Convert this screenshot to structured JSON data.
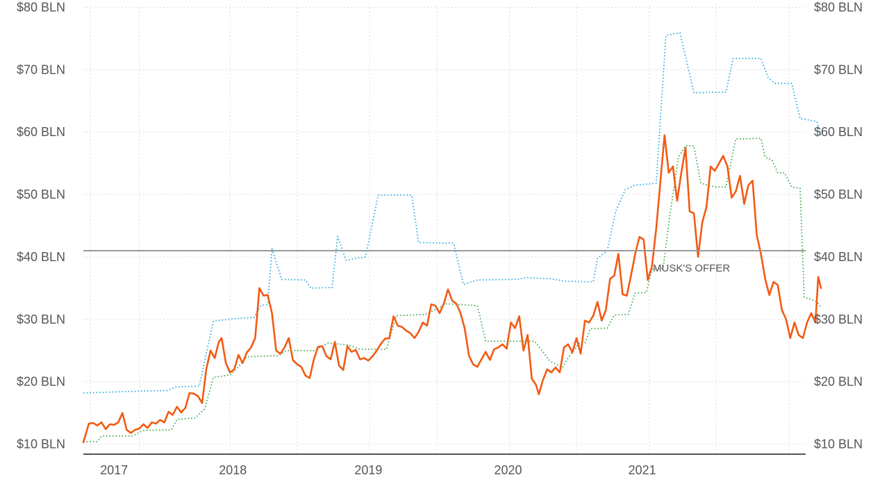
{
  "chart_data": {
    "type": "line",
    "title": "",
    "xlabel": "",
    "ylabel": "",
    "x_ticks": [
      "2017",
      "2018",
      "2019",
      "2020",
      "2021"
    ],
    "y_ticks_left": [
      "$10 BLN",
      "$20 BLN",
      "$30 BLN",
      "$40 BLN",
      "$50 BLN",
      "$60 BLN",
      "$70 BLN",
      "$80 BLN"
    ],
    "y_ticks_right": [
      "$10 BLN",
      "$20 BLN",
      "$30 BLN",
      "$40 BLN",
      "$50 BLN",
      "$60 BLN",
      "$70 BLN",
      "$80 BLN"
    ],
    "ylim": [
      8.4,
      80.5
    ],
    "xlim": [
      2016.45,
      2021.62
    ],
    "grid": true,
    "reference_line": {
      "value": 41.0,
      "label": "MUSK'S OFFER"
    },
    "series": [
      {
        "color": "#F25A12",
        "style": "solid",
        "points": [
          [
            2016.45,
            10.3
          ],
          [
            2016.49,
            13.3
          ],
          [
            2016.52,
            13.4
          ],
          [
            2016.55,
            13.0
          ],
          [
            2016.58,
            13.5
          ],
          [
            2016.61,
            12.4
          ],
          [
            2016.64,
            13.2
          ],
          [
            2016.67,
            13.1
          ],
          [
            2016.7,
            13.5
          ],
          [
            2016.73,
            15.0
          ],
          [
            2016.76,
            12.3
          ],
          [
            2016.79,
            11.8
          ],
          [
            2016.82,
            12.3
          ],
          [
            2016.85,
            12.5
          ],
          [
            2016.88,
            13.2
          ],
          [
            2016.91,
            12.6
          ],
          [
            2016.94,
            13.5
          ],
          [
            2016.97,
            13.3
          ],
          [
            2017.0,
            13.9
          ],
          [
            2017.03,
            13.5
          ],
          [
            2017.06,
            15.2
          ],
          [
            2017.09,
            14.7
          ],
          [
            2017.12,
            16.0
          ],
          [
            2017.15,
            15.1
          ],
          [
            2017.18,
            15.8
          ],
          [
            2017.21,
            18.2
          ],
          [
            2017.24,
            18.1
          ],
          [
            2017.27,
            17.7
          ],
          [
            2017.3,
            16.6
          ],
          [
            2017.33,
            22.0
          ],
          [
            2017.36,
            25.0
          ],
          [
            2017.39,
            23.8
          ],
          [
            2017.42,
            26.4
          ],
          [
            2017.44,
            27.0
          ],
          [
            2017.47,
            23.0
          ],
          [
            2017.5,
            21.5
          ],
          [
            2017.53,
            22.0
          ],
          [
            2017.56,
            24.3
          ],
          [
            2017.59,
            23.0
          ],
          [
            2017.62,
            24.7
          ],
          [
            2017.65,
            25.5
          ],
          [
            2017.68,
            27.0
          ],
          [
            2017.71,
            35.0
          ],
          [
            2017.74,
            33.8
          ],
          [
            2017.77,
            33.9
          ],
          [
            2017.8,
            31.0
          ],
          [
            2017.83,
            25.0
          ],
          [
            2017.86,
            24.5
          ],
          [
            2017.89,
            25.5
          ],
          [
            2017.92,
            27.0
          ],
          [
            2017.95,
            23.5
          ],
          [
            2017.98,
            22.8
          ],
          [
            2018.01,
            22.4
          ],
          [
            2018.04,
            21.0
          ],
          [
            2018.07,
            20.6
          ],
          [
            2018.1,
            23.6
          ],
          [
            2018.13,
            25.6
          ],
          [
            2018.16,
            25.7
          ],
          [
            2018.19,
            24.1
          ],
          [
            2018.22,
            23.6
          ],
          [
            2018.25,
            26.4
          ],
          [
            2018.28,
            22.6
          ],
          [
            2018.31,
            21.9
          ],
          [
            2018.34,
            25.7
          ],
          [
            2018.37,
            24.8
          ],
          [
            2018.4,
            25.1
          ],
          [
            2018.43,
            23.6
          ],
          [
            2018.46,
            23.8
          ],
          [
            2018.49,
            23.4
          ],
          [
            2018.52,
            24.1
          ],
          [
            2018.55,
            25.0
          ],
          [
            2018.58,
            26.1
          ],
          [
            2018.61,
            26.9
          ],
          [
            2018.64,
            27.0
          ],
          [
            2018.67,
            30.5
          ],
          [
            2018.7,
            29.0
          ],
          [
            2018.73,
            28.8
          ],
          [
            2018.76,
            28.2
          ],
          [
            2018.79,
            27.8
          ],
          [
            2018.82,
            27.0
          ],
          [
            2018.85,
            28.0
          ],
          [
            2018.88,
            29.5
          ],
          [
            2018.91,
            29.0
          ],
          [
            2018.94,
            32.4
          ],
          [
            2018.97,
            32.2
          ],
          [
            2019.0,
            31.0
          ],
          [
            2019.03,
            32.5
          ],
          [
            2019.06,
            34.8
          ],
          [
            2019.09,
            33.0
          ],
          [
            2019.12,
            32.5
          ],
          [
            2019.15,
            31.0
          ],
          [
            2019.18,
            28.5
          ],
          [
            2019.21,
            24.2
          ],
          [
            2019.24,
            22.8
          ],
          [
            2019.27,
            22.4
          ],
          [
            2019.3,
            23.6
          ],
          [
            2019.33,
            24.8
          ],
          [
            2019.36,
            23.5
          ],
          [
            2019.39,
            25.2
          ],
          [
            2019.42,
            25.5
          ],
          [
            2019.45,
            26.0
          ],
          [
            2019.48,
            25.3
          ],
          [
            2019.51,
            29.5
          ],
          [
            2019.54,
            28.6
          ],
          [
            2019.57,
            30.5
          ],
          [
            2019.6,
            25.0
          ],
          [
            2019.63,
            27.5
          ],
          [
            2019.66,
            20.5
          ],
          [
            2019.69,
            19.5
          ],
          [
            2019.71,
            18.0
          ],
          [
            2019.74,
            20.3
          ],
          [
            2019.77,
            22.0
          ],
          [
            2019.8,
            21.5
          ],
          [
            2019.83,
            22.3
          ],
          [
            2019.86,
            21.5
          ],
          [
            2019.89,
            25.5
          ],
          [
            2019.92,
            26.0
          ],
          [
            2019.95,
            24.7
          ],
          [
            2019.98,
            27.0
          ],
          [
            2020.01,
            24.5
          ],
          [
            2020.04,
            29.8
          ],
          [
            2020.07,
            29.5
          ],
          [
            2020.1,
            30.6
          ],
          [
            2020.13,
            32.8
          ],
          [
            2020.16,
            29.8
          ],
          [
            2020.19,
            31.5
          ],
          [
            2020.22,
            36.5
          ],
          [
            2020.25,
            37.0
          ],
          [
            2020.28,
            40.5
          ],
          [
            2020.31,
            34.0
          ],
          [
            2020.34,
            33.8
          ],
          [
            2020.37,
            37.0
          ],
          [
            2020.4,
            40.5
          ],
          [
            2020.43,
            43.2
          ],
          [
            2020.46,
            42.8
          ],
          [
            2020.49,
            36.3
          ],
          [
            2020.52,
            38.5
          ],
          [
            2020.55,
            44.5
          ],
          [
            2020.58,
            52.0
          ],
          [
            2020.61,
            59.5
          ],
          [
            2020.64,
            53.5
          ],
          [
            2020.67,
            54.5
          ],
          [
            2020.7,
            49.0
          ],
          [
            2020.73,
            53.5
          ],
          [
            2020.76,
            57.5
          ],
          [
            2020.79,
            47.3
          ],
          [
            2020.82,
            47.0
          ],
          [
            2020.85,
            40.0
          ],
          [
            2020.88,
            45.5
          ],
          [
            2020.91,
            48.0
          ],
          [
            2020.94,
            54.5
          ],
          [
            2020.97,
            53.8
          ],
          [
            2021.0,
            55.0
          ],
          [
            2021.03,
            56.2
          ],
          [
            2021.06,
            54.5
          ],
          [
            2021.09,
            49.5
          ],
          [
            2021.12,
            50.5
          ],
          [
            2021.15,
            53.0
          ],
          [
            2021.18,
            48.5
          ],
          [
            2021.21,
            51.5
          ],
          [
            2021.24,
            52.2
          ],
          [
            2021.27,
            43.5
          ],
          [
            2021.3,
            40.5
          ],
          [
            2021.33,
            36.5
          ],
          [
            2021.36,
            33.9
          ],
          [
            2021.39,
            36.0
          ],
          [
            2021.42,
            35.5
          ],
          [
            2021.45,
            31.5
          ],
          [
            2021.48,
            30.0
          ],
          [
            2021.51,
            27.0
          ],
          [
            2021.54,
            29.5
          ],
          [
            2021.57,
            27.5
          ],
          [
            2021.6,
            27.0
          ],
          [
            2021.63,
            29.5
          ],
          [
            2021.66,
            31.0
          ],
          [
            2021.69,
            29.5
          ],
          [
            2021.71,
            36.8
          ],
          [
            2021.73,
            35.0
          ]
        ]
      },
      {
        "color": "#29ABE2",
        "style": "dotted",
        "points": [
          [
            2016.45,
            18.2
          ],
          [
            2016.85,
            18.5
          ],
          [
            2017.05,
            18.6
          ],
          [
            2017.12,
            19.2
          ],
          [
            2017.28,
            19.3
          ],
          [
            2017.33,
            24.5
          ],
          [
            2017.38,
            29.7
          ],
          [
            2017.52,
            30.1
          ],
          [
            2017.67,
            30.3
          ],
          [
            2017.72,
            32.2
          ],
          [
            2017.77,
            32.4
          ],
          [
            2017.8,
            41.3
          ],
          [
            2017.87,
            36.4
          ],
          [
            2018.04,
            36.3
          ],
          [
            2018.08,
            35.0
          ],
          [
            2018.23,
            35.1
          ],
          [
            2018.27,
            43.3
          ],
          [
            2018.33,
            39.5
          ],
          [
            2018.47,
            40.0
          ],
          [
            2018.56,
            49.9
          ],
          [
            2018.8,
            49.9
          ],
          [
            2018.85,
            42.3
          ],
          [
            2019.1,
            42.2
          ],
          [
            2019.17,
            35.6
          ],
          [
            2019.27,
            36.3
          ],
          [
            2019.55,
            36.4
          ],
          [
            2019.62,
            36.7
          ],
          [
            2019.8,
            36.5
          ],
          [
            2019.9,
            36.1
          ],
          [
            2020.1,
            36.0
          ],
          [
            2020.13,
            39.8
          ],
          [
            2020.2,
            41.0
          ],
          [
            2020.26,
            47.3
          ],
          [
            2020.33,
            50.8
          ],
          [
            2020.4,
            51.5
          ],
          [
            2020.55,
            51.8
          ],
          [
            2020.62,
            75.5
          ],
          [
            2020.72,
            75.9
          ],
          [
            2020.82,
            66.3
          ],
          [
            2021.05,
            66.4
          ],
          [
            2021.1,
            71.8
          ],
          [
            2021.3,
            71.8
          ],
          [
            2021.35,
            68.8
          ],
          [
            2021.4,
            67.8
          ],
          [
            2021.52,
            67.8
          ],
          [
            2021.58,
            62.2
          ],
          [
            2021.7,
            61.7
          ],
          [
            2021.73,
            59.5
          ]
        ]
      },
      {
        "color": "#3DA94A",
        "style": "dotted",
        "points": [
          [
            2016.45,
            10.4
          ],
          [
            2016.55,
            10.4
          ],
          [
            2016.58,
            11.3
          ],
          [
            2016.8,
            11.3
          ],
          [
            2016.88,
            12.2
          ],
          [
            2017.08,
            12.3
          ],
          [
            2017.12,
            14.0
          ],
          [
            2017.25,
            14.2
          ],
          [
            2017.32,
            15.7
          ],
          [
            2017.38,
            20.7
          ],
          [
            2017.5,
            21.1
          ],
          [
            2017.56,
            22.4
          ],
          [
            2017.62,
            24.0
          ],
          [
            2017.85,
            24.2
          ],
          [
            2017.9,
            25.0
          ],
          [
            2018.05,
            25.0
          ],
          [
            2018.1,
            25.0
          ],
          [
            2018.2,
            26.2
          ],
          [
            2018.35,
            25.9
          ],
          [
            2018.43,
            25.2
          ],
          [
            2018.62,
            25.2
          ],
          [
            2018.69,
            30.6
          ],
          [
            2018.9,
            30.8
          ],
          [
            2019.05,
            32.5
          ],
          [
            2019.27,
            32.2
          ],
          [
            2019.33,
            26.5
          ],
          [
            2019.55,
            26.5
          ],
          [
            2019.68,
            26.5
          ],
          [
            2019.79,
            23.3
          ],
          [
            2019.88,
            22.3
          ],
          [
            2019.92,
            23.8
          ],
          [
            2020.0,
            26.2
          ],
          [
            2020.04,
            26.2
          ],
          [
            2020.08,
            28.5
          ],
          [
            2020.2,
            28.6
          ],
          [
            2020.25,
            30.7
          ],
          [
            2020.35,
            30.8
          ],
          [
            2020.4,
            34.2
          ],
          [
            2020.48,
            34.3
          ],
          [
            2020.52,
            38.0
          ],
          [
            2020.6,
            38.2
          ],
          [
            2020.65,
            47.0
          ],
          [
            2020.71,
            56.0
          ],
          [
            2020.76,
            57.8
          ],
          [
            2020.82,
            57.8
          ],
          [
            2020.87,
            51.8
          ],
          [
            2020.92,
            51.5
          ],
          [
            2020.97,
            51.2
          ],
          [
            2021.05,
            51.2
          ],
          [
            2021.12,
            58.9
          ],
          [
            2021.3,
            59.0
          ],
          [
            2021.33,
            56.0
          ],
          [
            2021.38,
            55.5
          ],
          [
            2021.42,
            53.5
          ],
          [
            2021.47,
            53.5
          ],
          [
            2021.52,
            51.2
          ],
          [
            2021.58,
            51.0
          ],
          [
            2021.61,
            33.5
          ],
          [
            2021.66,
            33.2
          ],
          [
            2021.7,
            32.8
          ],
          [
            2021.73,
            32.0
          ]
        ]
      }
    ]
  }
}
